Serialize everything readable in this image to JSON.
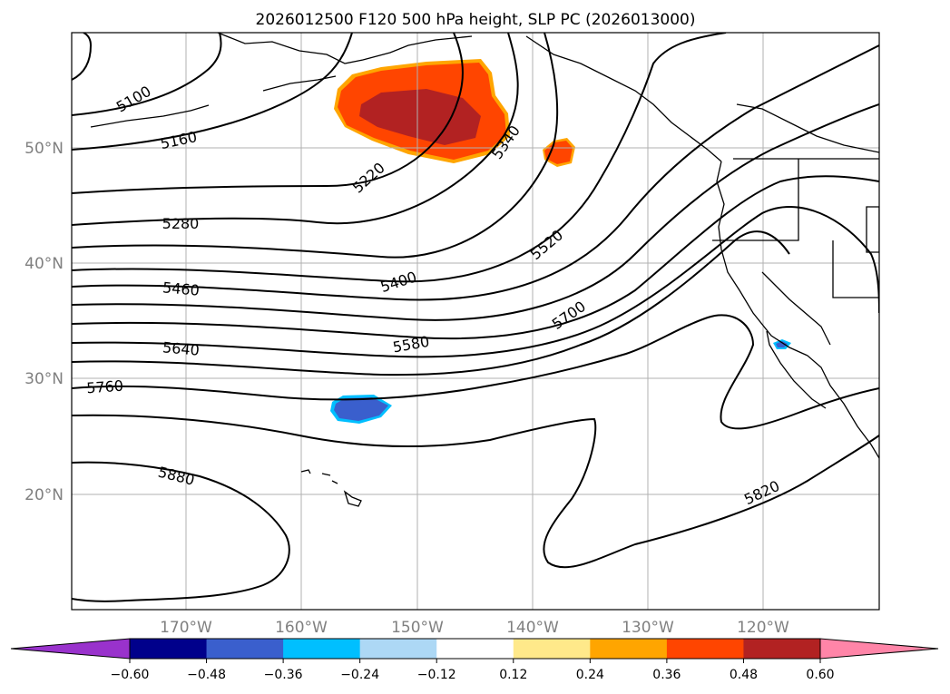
{
  "title": "2026012500 F120 500 hPa height, SLP PC (2026013000)",
  "lat_labels": [
    "50°N",
    "40°N",
    "30°N",
    "20°N"
  ],
  "lon_labels": [
    "170°W",
    "160°W",
    "150°W",
    "140°W",
    "130°W",
    "120°W"
  ],
  "contour_labels": [
    "5100",
    "5160",
    "5220",
    "5280",
    "5340",
    "5400",
    "5460",
    "5520",
    "5580",
    "5640",
    "5700",
    "5760",
    "5820",
    "5880"
  ],
  "colorbar": {
    "ticks": [
      "−0.60",
      "−0.48",
      "−0.36",
      "−0.24",
      "−0.12",
      "0.12",
      "0.24",
      "0.36",
      "0.48",
      "0.60"
    ],
    "colors": [
      "#9932cc",
      "#00008b",
      "#3a5fcd",
      "#00bfff",
      "#add8f5",
      "#ffffff",
      "#ffe98a",
      "#ffa500",
      "#ff4500",
      "#b22222",
      "#ff85a8"
    ]
  },
  "shading": {
    "positive_colors": [
      "#ffa500",
      "#ff4500",
      "#b22222"
    ],
    "negative_colors": [
      "#00bfff",
      "#3a5fcd"
    ]
  }
}
